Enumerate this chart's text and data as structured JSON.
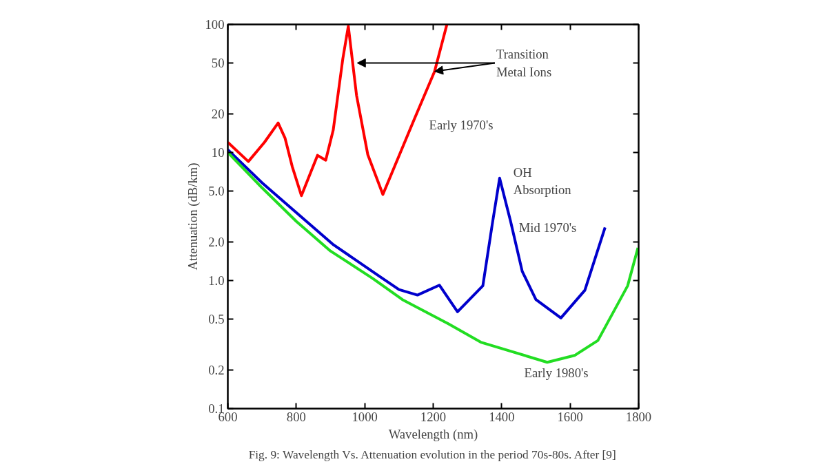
{
  "chart_data": {
    "type": "line",
    "xlabel": "Wavelength (nm)",
    "ylabel": "Attenuation (dB/km)",
    "log": "y",
    "grid": false,
    "marker": "none",
    "line_style": "solid",
    "xlim": [
      600,
      1800
    ],
    "xticks": [
      600,
      800,
      1000,
      1200,
      1400,
      1600,
      1800
    ],
    "ylim": [
      0.1,
      100
    ],
    "yticks": [
      100,
      50,
      20,
      10,
      {
        "value": 5,
        "label": "5.0"
      },
      {
        "value": 2,
        "label": "2.0"
      },
      {
        "value": 1,
        "label": "1.0"
      },
      0.5,
      0.2,
      0.1
    ],
    "series": [
      {
        "name": "Early 1970's",
        "color": "#ff0000",
        "x": [
          600,
          660,
          707,
          747,
          767,
          788,
          815,
          862,
          886,
          908,
          936,
          952,
          976,
          1009,
          1053,
          1144,
          1204,
          1240
        ],
        "values": [
          12,
          8.5,
          12,
          17,
          13,
          7.8,
          4.6,
          9.5,
          8.7,
          15,
          54,
          97,
          28,
          9.6,
          4.7,
          18,
          43,
          100
        ]
      },
      {
        "name": "Mid 1970's",
        "color": "#0000cc",
        "x": [
          600,
          700,
          800,
          909,
          1043,
          1100,
          1154,
          1218,
          1271,
          1345,
          1372,
          1394,
          1426,
          1460,
          1500,
          1573,
          1643,
          1702
        ],
        "values": [
          10.5,
          5.8,
          3.4,
          1.9,
          1.08,
          0.85,
          0.77,
          0.92,
          0.57,
          0.91,
          2.7,
          6.3,
          2.9,
          1.18,
          0.71,
          0.51,
          0.84,
          2.6
        ]
      },
      {
        "name": "Early 1980's",
        "color": "#22dd22",
        "x": [
          600,
          700,
          800,
          900,
          1023,
          1110,
          1244,
          1339,
          1533,
          1613,
          1681,
          1768,
          1798
        ],
        "values": [
          10,
          5.3,
          2.9,
          1.7,
          1.04,
          0.71,
          0.46,
          0.33,
          0.23,
          0.26,
          0.34,
          0.91,
          1.8
        ]
      }
    ],
    "annotations": [
      {
        "text": "Transition Metal Ions",
        "x": 1204,
        "y": 43
      },
      "OH Absorption",
      "Fig. 9: Wavelength Vs. Attenuation evolution in the period 70s-80s. After [9]"
    ]
  }
}
